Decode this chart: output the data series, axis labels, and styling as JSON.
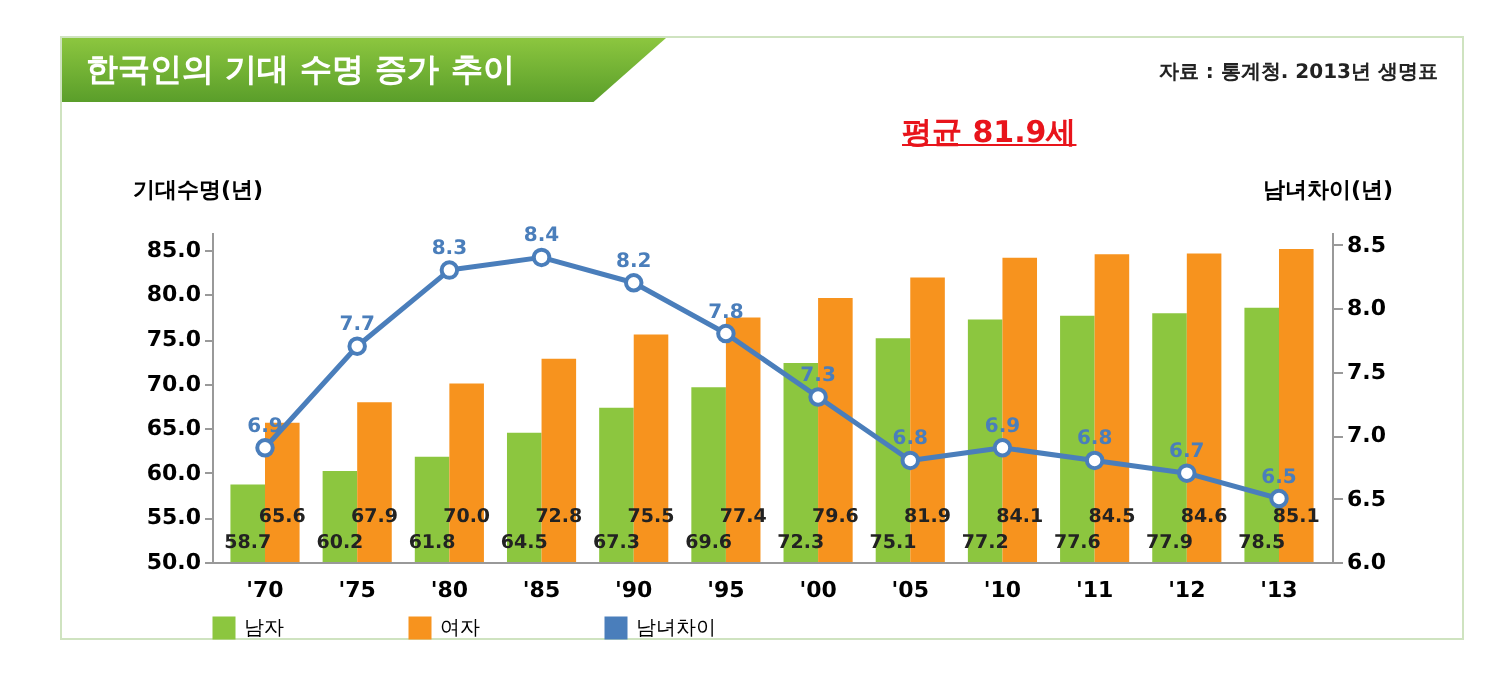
{
  "chart_data": {
    "type": "bar",
    "title": "한국인의 기대 수명 증가 추이",
    "ylabel": "기대수명(년)",
    "y2label": "남녀차이(년)",
    "annotations": [
      "자료 : 통계청. 2013년 생명표",
      "평균 81.9세"
    ],
    "categories": [
      "'70",
      "'75",
      "'80",
      "'85",
      "'90",
      "'95",
      "'00",
      "'05",
      "'10",
      "'11",
      "'12",
      "'13"
    ],
    "series": [
      {
        "name": "남자",
        "color": "#8cc63f",
        "values": [
          58.7,
          60.2,
          61.8,
          64.5,
          67.3,
          69.6,
          72.3,
          75.1,
          77.2,
          77.6,
          77.9,
          78.5
        ],
        "value_labels": [
          "58.7",
          "60.2",
          "61.8",
          "64.5",
          "67.3",
          "69.6",
          "72.3",
          "75.1",
          "77.2",
          "77.6",
          "77.9",
          "78.5"
        ]
      },
      {
        "name": "여자",
        "color": "#f7931e",
        "values": [
          65.6,
          67.9,
          70.0,
          72.8,
          75.5,
          77.4,
          79.6,
          81.9,
          84.1,
          84.5,
          84.6,
          85.1
        ],
        "value_labels": [
          "65.6",
          "67.9",
          "70.0",
          "72.8",
          "75.5",
          "77.4",
          "79.6",
          "81.9",
          "84.1",
          "84.5",
          "84.6",
          "85.1"
        ]
      },
      {
        "name": "남녀차이",
        "type": "line",
        "axis": "y2",
        "color": "#4a7ebb",
        "values": [
          6.9,
          7.7,
          8.3,
          8.4,
          8.2,
          7.8,
          7.3,
          6.8,
          6.9,
          6.8,
          6.7,
          6.5
        ],
        "value_labels": [
          "6.9",
          "7.7",
          "8.3",
          "8.4",
          "8.2",
          "7.8",
          "7.3",
          "6.8",
          "6.9",
          "6.8",
          "6.7",
          "6.5"
        ]
      }
    ],
    "ylim": [
      50,
      87
    ],
    "yticks": [
      {
        "value": 50,
        "label": "50.0"
      },
      {
        "value": 55,
        "label": "55.0"
      },
      {
        "value": 60,
        "label": "60.0"
      },
      {
        "value": 65,
        "label": "65.0"
      },
      {
        "value": 70,
        "label": "70.0"
      },
      {
        "value": 75,
        "label": "75.0"
      },
      {
        "value": 80,
        "label": "80.0"
      },
      {
        "value": 85,
        "label": "85.0"
      }
    ],
    "y2lim": [
      6,
      8.6
    ],
    "y2ticks": [
      {
        "value": 6,
        "label": "6.0"
      },
      {
        "value": 6.5,
        "label": "6.5"
      },
      {
        "value": 7,
        "label": "7.0"
      },
      {
        "value": 7.5,
        "label": "7.5"
      },
      {
        "value": 8,
        "label": "8.0"
      },
      {
        "value": 8.5,
        "label": "8.5"
      }
    ],
    "legend": "bottom",
    "marker": "circle",
    "line_style": "solid"
  }
}
